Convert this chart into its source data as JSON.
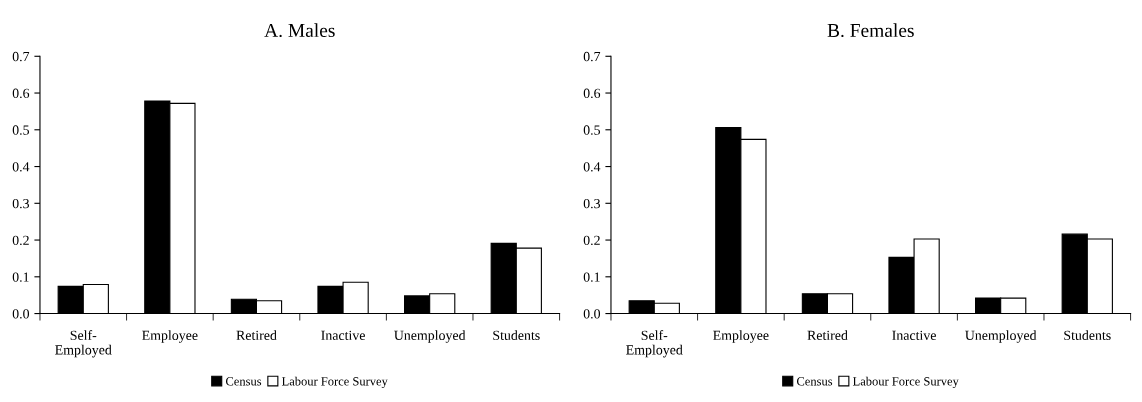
{
  "chart_data": [
    {
      "type": "bar",
      "title": "A. Males",
      "categories": [
        "Self-\nEmployed",
        "Employee",
        "Retired",
        "Inactive",
        "Unemployed",
        "Students"
      ],
      "series": [
        {
          "name": "Census",
          "color": "#000000",
          "values": [
            0.074,
            0.578,
            0.039,
            0.074,
            0.048,
            0.191
          ]
        },
        {
          "name": "Labour Force Survey",
          "color": "#ffffff",
          "values": [
            0.079,
            0.572,
            0.035,
            0.085,
            0.054,
            0.178
          ]
        }
      ],
      "ylim": [
        0,
        0.7
      ],
      "yticks": [
        {
          "value": 0,
          "label": "0.0"
        },
        0.1,
        0.2,
        0.3,
        0.4,
        0.5,
        0.6,
        0.7
      ],
      "grid": false,
      "legend": "bottom"
    },
    {
      "type": "bar",
      "title": "B. Females",
      "categories": [
        "Self-\nEmployed",
        "Employee",
        "Retired",
        "Inactive",
        "Unemployed",
        "Students"
      ],
      "series": [
        {
          "name": "Census",
          "color": "#000000",
          "values": [
            0.035,
            0.506,
            0.054,
            0.153,
            0.042,
            0.216
          ]
        },
        {
          "name": "Labour Force Survey",
          "color": "#ffffff",
          "values": [
            0.028,
            0.474,
            0.054,
            0.203,
            0.042,
            0.203
          ]
        }
      ],
      "ylim": [
        0,
        0.7
      ],
      "yticks": [
        {
          "value": 0,
          "label": "0.0"
        },
        0.1,
        0.2,
        0.3,
        0.4,
        0.5,
        0.6,
        0.7
      ],
      "grid": false,
      "legend": "bottom"
    }
  ]
}
